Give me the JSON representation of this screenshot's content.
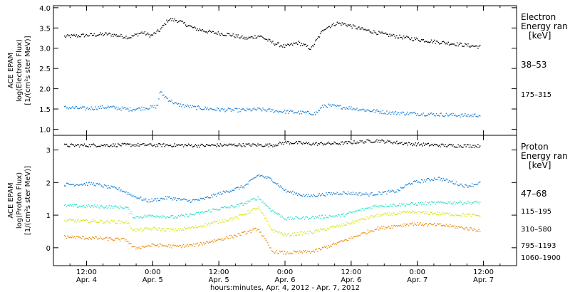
{
  "chart_data": [
    {
      "type": "scatter",
      "ylabel": [
        "ACE EPAM",
        "log(Electron Flux)",
        "[1/(cm²s ster MeV)]"
      ],
      "ylim": [
        0.85,
        4.05
      ],
      "yticks": [
        "1.0",
        "1.5",
        "2.0",
        "2.5",
        "3.0",
        "3.5",
        "4.0"
      ],
      "legend_title": [
        "Electron",
        "Energy ran",
        "[keV]"
      ],
      "series": [
        {
          "name": "38–53",
          "color": "#000000",
          "x": [
            0,
            0.5,
            1,
            1.5,
            1.8,
            2.0,
            2.2,
            2.4,
            2.6,
            3.0,
            3.4,
            3.8,
            4.2,
            4.5,
            4.8,
            5.1,
            5.4,
            5.7,
            6.0,
            6.3,
            6.5,
            6.8,
            7.0,
            7.4,
            8.0,
            8.5,
            9.0,
            9.3,
            9.6
          ],
          "y": [
            3.3,
            3.33,
            3.36,
            3.28,
            3.4,
            3.32,
            3.45,
            3.72,
            3.7,
            3.5,
            3.4,
            3.35,
            3.25,
            3.32,
            3.15,
            3.05,
            3.15,
            3.0,
            3.5,
            3.63,
            3.6,
            3.5,
            3.45,
            3.35,
            3.25,
            3.18,
            3.12,
            3.08,
            3.05
          ]
        },
        {
          "name": "175–315",
          "color": "#1a7fd4",
          "x": [
            0,
            0.5,
            1,
            1.5,
            2.0,
            2.15,
            2.2,
            2.4,
            2.6,
            3.0,
            3.5,
            4.0,
            4.5,
            5.0,
            5.5,
            5.8,
            6.0,
            6.5,
            7.0,
            7.5,
            8.0,
            8.5,
            9.0,
            9.3,
            9.6
          ],
          "y": [
            1.55,
            1.52,
            1.56,
            1.5,
            1.55,
            1.58,
            1.93,
            1.75,
            1.62,
            1.55,
            1.5,
            1.48,
            1.5,
            1.45,
            1.42,
            1.4,
            1.6,
            1.55,
            1.48,
            1.42,
            1.4,
            1.38,
            1.36,
            1.35,
            1.36
          ]
        }
      ]
    },
    {
      "type": "scatter",
      "ylabel": [
        "ACE EPAM",
        "log(Proton Flux)",
        "[1/(cm²s ster MeV)]"
      ],
      "ylim": [
        -0.55,
        3.45
      ],
      "yticks": [
        "0",
        "1",
        "2",
        "3"
      ],
      "legend_title": [
        "Proton",
        "Energy ran",
        "[keV]"
      ],
      "xticks": [
        {
          "x": 0.5,
          "time": "12:00",
          "date": "Apr. 4"
        },
        {
          "x": 1.5,
          "time": "0:00",
          "date": "Apr. 5"
        },
        {
          "x": 2.5,
          "time": "12:00",
          "date": "Apr. 5"
        },
        {
          "x": 3.5,
          "time": "0:00",
          "date": "Apr. 6"
        },
        {
          "x": 4.5,
          "time": "12:00",
          "date": "Apr. 6"
        },
        {
          "x": 5.5,
          "time": "0:00",
          "date": "Apr. 7"
        },
        {
          "x": 6.5,
          "time": "12:00",
          "date": "Apr. 7"
        }
      ],
      "xlabel": "hours:minutes, Apr.  4, 2012 - Apr.  7, 2012",
      "series": [
        {
          "name": "47–68",
          "color": "#000000",
          "x": [
            0,
            1,
            2,
            2.5,
            3,
            3.2,
            3.6,
            4.0,
            4.5,
            5.0,
            5.5,
            6.0
          ],
          "y": [
            3.15,
            3.17,
            3.15,
            3.17,
            3.16,
            3.25,
            3.2,
            3.22,
            3.3,
            3.2,
            3.15,
            3.14
          ]
        },
        {
          "name": "115–195",
          "color": "#1a7fd4",
          "x": [
            0,
            0.4,
            0.8,
            1.0,
            1.2,
            1.5,
            1.8,
            2.0,
            2.2,
            2.6,
            2.8,
            3.0,
            3.2,
            3.5,
            4.0,
            4.4,
            4.8,
            5.0,
            5.4,
            5.8,
            6.0
          ],
          "y": [
            1.95,
            1.98,
            1.8,
            1.6,
            1.45,
            1.55,
            1.45,
            1.5,
            1.65,
            1.9,
            2.25,
            2.1,
            1.75,
            1.6,
            1.7,
            1.65,
            1.75,
            2.0,
            2.15,
            1.9,
            2.0
          ]
        },
        {
          "name": "310–580",
          "color": "#2ee0c8",
          "x": [
            0,
            0.5,
            0.9,
            1.0,
            1.3,
            1.6,
            1.9,
            2.2,
            2.5,
            2.8,
            3.0,
            3.2,
            3.6,
            4.0,
            4.5,
            5.0,
            5.5,
            6.0
          ],
          "y": [
            1.3,
            1.28,
            1.25,
            0.95,
            1.0,
            0.95,
            1.05,
            1.2,
            1.3,
            1.55,
            1.15,
            0.9,
            0.95,
            1.0,
            1.3,
            1.35,
            1.4,
            1.4
          ]
        },
        {
          "name": "795–1193",
          "color": "#d6e51a",
          "x": [
            0,
            0.5,
            0.9,
            1.0,
            1.3,
            1.6,
            1.9,
            2.2,
            2.5,
            2.8,
            3.0,
            3.2,
            3.6,
            4.0,
            4.5,
            5.0,
            5.5,
            6.0
          ],
          "y": [
            0.85,
            0.82,
            0.8,
            0.55,
            0.6,
            0.55,
            0.65,
            0.8,
            0.95,
            1.25,
            0.55,
            0.4,
            0.5,
            0.7,
            1.0,
            1.1,
            1.05,
            1.0
          ]
        },
        {
          "name": "1060–1900",
          "color": "#ee8c10",
          "x": [
            0,
            0.5,
            0.9,
            1.0,
            1.3,
            1.6,
            1.9,
            2.2,
            2.5,
            2.8,
            3.0,
            3.2,
            3.6,
            4.0,
            4.5,
            5.0,
            5.5,
            6.0
          ],
          "y": [
            0.35,
            0.3,
            0.25,
            0.0,
            0.1,
            0.05,
            0.1,
            0.25,
            0.4,
            0.6,
            -0.1,
            -0.15,
            -0.1,
            0.2,
            0.6,
            0.75,
            0.7,
            0.55
          ]
        }
      ]
    }
  ]
}
